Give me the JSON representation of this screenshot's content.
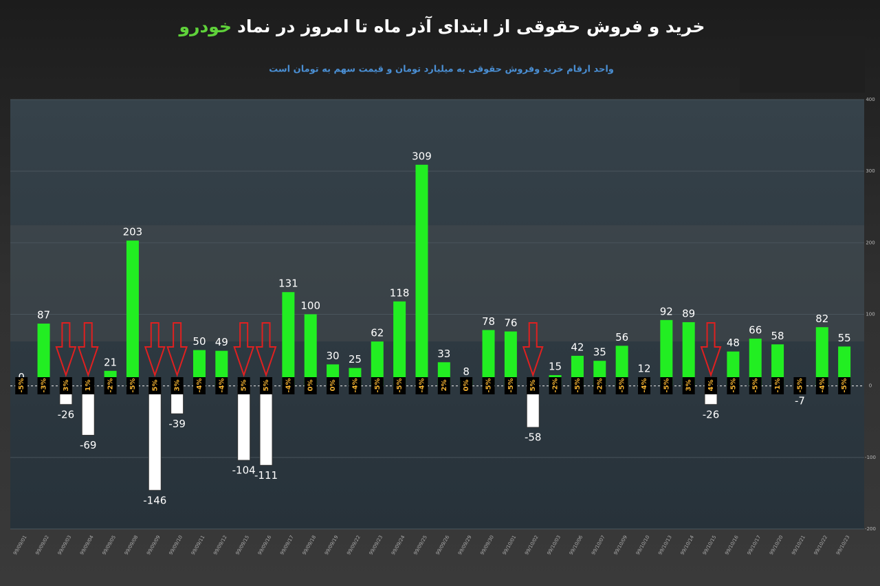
{
  "chart_data": {
    "type": "bar",
    "title": "خرید و فروش حقوقی از ابتدای آذر ماه تا امروز در نماد",
    "title_highlight": "خودرو",
    "subtitle": "واحد ارقام خرید وفروش حقوقی به میلیارد تومان و قیمت سهم به تومان است",
    "categories": [
      "99/09/01",
      "99/09/02",
      "99/09/03",
      "99/09/04",
      "99/09/05",
      "99/09/08",
      "99/09/09",
      "99/09/10",
      "99/09/11",
      "99/09/12",
      "99/09/15",
      "99/09/16",
      "99/09/17",
      "99/09/18",
      "99/09/19",
      "99/09/22",
      "99/09/23",
      "99/09/24",
      "99/09/25",
      "99/09/26",
      "99/09/29",
      "99/09/30",
      "99/10/01",
      "99/10/02",
      "99/10/03",
      "99/10/06",
      "99/10/07",
      "99/10/09",
      "99/10/10",
      "99/10/13",
      "99/10/14",
      "99/10/15",
      "99/10/16",
      "99/10/17",
      "99/10/20",
      "99/10/21",
      "99/10/22",
      "99/10/23"
    ],
    "values": [
      0,
      87,
      -26,
      -69,
      21,
      203,
      -146,
      -39,
      50,
      49,
      -104,
      -111,
      131,
      100,
      30,
      25,
      62,
      118,
      309,
      33,
      8,
      78,
      76,
      -58,
      15,
      42,
      35,
      56,
      12,
      92,
      89,
      -26,
      48,
      66,
      58,
      -7,
      82,
      55
    ],
    "change_labels": [
      "-5%",
      "-3%",
      "3%",
      "1%",
      "-2%",
      "-5%",
      "5%",
      "3%",
      "-4%",
      "-4%",
      "5%",
      "5%",
      "-4%",
      "0%",
      "0%",
      "-4%",
      "-5%",
      "-5%",
      "-4%",
      "2%",
      "0%",
      "-5%",
      "-5%",
      "5%",
      "-2%",
      "-5%",
      "-2%",
      "-5%",
      "-4%",
      "-5%",
      "3%",
      "4%",
      "-5%",
      "-5%",
      "-1%",
      "-5%",
      "-4%",
      "-5%"
    ],
    "positive_color": "#22ee22",
    "negative_color": "#ffffff",
    "ylim": [
      -200,
      400
    ],
    "yticks": [
      -200,
      -100,
      0,
      100,
      200,
      300,
      400
    ],
    "grid": true
  }
}
